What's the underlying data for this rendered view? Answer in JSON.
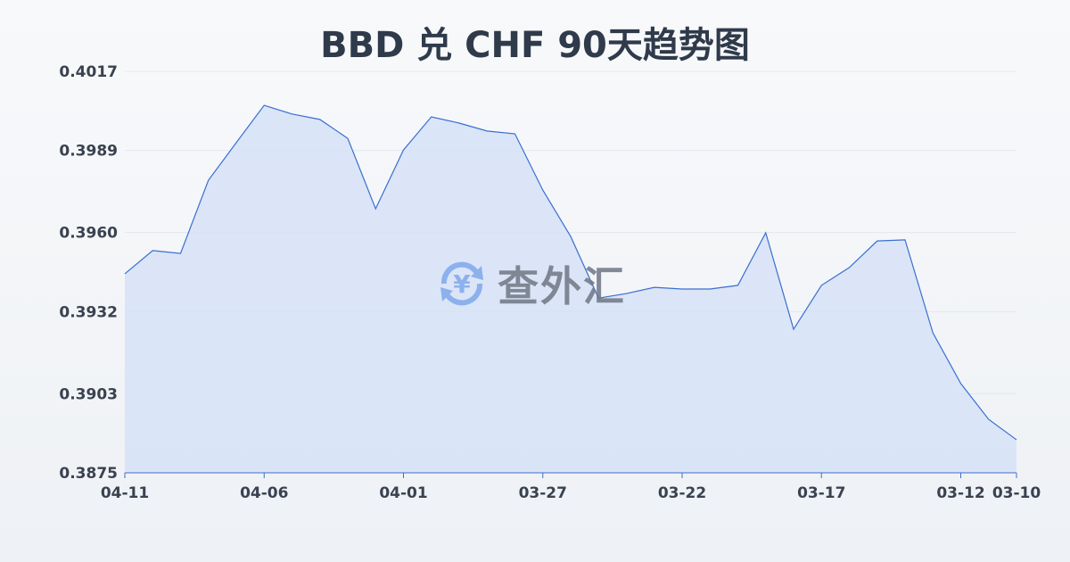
{
  "chart_data": {
    "type": "area",
    "title": "BBD 兑 CHF 90天趋势图",
    "xlabel": "",
    "ylabel": "",
    "ylim": [
      0.3875,
      0.4017
    ],
    "yticks": [
      "0.4017",
      "0.3989",
      "0.3960",
      "0.3932",
      "0.3903",
      "0.3875"
    ],
    "xticks": [
      "04-11",
      "04-06",
      "04-01",
      "03-27",
      "03-22",
      "03-17",
      "03-12",
      "03-10"
    ],
    "grid": true,
    "line_color": "#3a6fd0",
    "fill_color": "#d6e2f7",
    "x": [
      "04-11",
      "04-10",
      "04-09",
      "04-08",
      "04-07",
      "04-06",
      "04-05",
      "04-04",
      "04-03",
      "04-02",
      "04-01",
      "03-31",
      "03-30",
      "03-29",
      "03-28",
      "03-27",
      "03-26",
      "03-25",
      "03-24",
      "03-23",
      "03-22",
      "03-21",
      "03-20",
      "03-19",
      "03-18",
      "03-17",
      "03-16",
      "03-15",
      "03-14",
      "03-13",
      "03-12",
      "03-11",
      "03-10"
    ],
    "values": [
      0.39454,
      0.39536,
      0.39526,
      0.39785,
      0.39918,
      0.4005,
      0.40019,
      0.4,
      0.39933,
      0.39684,
      0.39892,
      0.40009,
      0.39987,
      0.39959,
      0.39949,
      0.3975,
      0.39586,
      0.39368,
      0.39384,
      0.39406,
      0.394,
      0.394,
      0.39413,
      0.39599,
      0.39258,
      0.39413,
      0.39476,
      0.3957,
      0.39574,
      0.39245,
      0.39066,
      0.38939,
      0.38867
    ]
  },
  "watermark": {
    "text": "查外汇",
    "icon": "yen-exchange-icon"
  }
}
